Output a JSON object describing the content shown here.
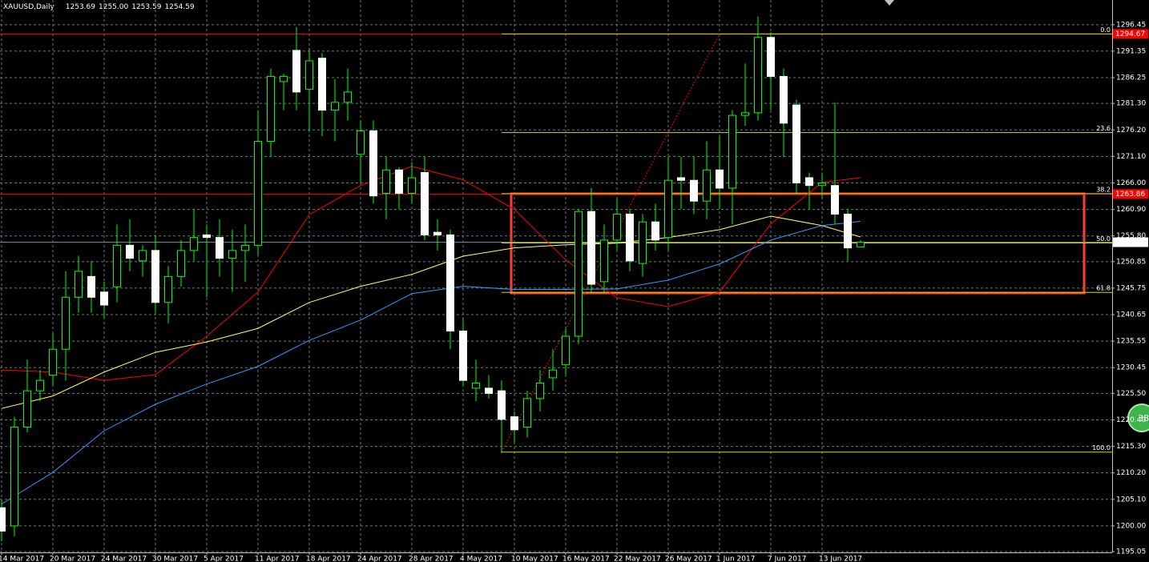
{
  "chart_data": {
    "type": "candlestick",
    "title": "XAUUSD,Daily",
    "header_values": [
      "1253.69",
      "1255.00",
      "1253.59",
      "1254.59"
    ],
    "categories": [
      "14 Mar 2017",
      null,
      null,
      null,
      "20 Mar 2017",
      null,
      null,
      null,
      "24 Mar 2017",
      null,
      null,
      null,
      "30 Mar 2017",
      null,
      null,
      null,
      "5 Apr 2017",
      null,
      null,
      null,
      "11 Apr 2017",
      null,
      null,
      null,
      "18 Apr 2017",
      null,
      null,
      null,
      "24 Apr 2017",
      null,
      null,
      null,
      "28 Apr 2017",
      null,
      null,
      null,
      "4 May 2017",
      null,
      null,
      null,
      "10 May 2017",
      null,
      null,
      null,
      "16 May 2017",
      null,
      null,
      null,
      "22 May 2017",
      null,
      null,
      null,
      "26 May 2017",
      null,
      null,
      null,
      "1 Jun 2017",
      null,
      null,
      null,
      "7 Jun 2017",
      null,
      null,
      null,
      "13 Jun 2017",
      null,
      null,
      null
    ],
    "open": [
      1203.5,
      1200,
      1219,
      1226,
      1229,
      1234,
      1244,
      1248,
      1245,
      1246,
      1254,
      1251,
      1253,
      1243,
      1248,
      1253,
      1256,
      1255.5,
      1251.5,
      1253,
      1254,
      1274,
      1285.5,
      1291.5,
      1284,
      1290,
      1280,
      1281.5,
      1271.5,
      1276,
      1264,
      1268.5,
      1264,
      1268,
      1256.5,
      1256,
      1237.5,
      1226.5,
      1226.5,
      1226,
      1221,
      1219,
      1224.5,
      1228.5,
      1231,
      1236.5,
      1260.5,
      1247,
      1255,
      1260,
      1250.5,
      1258.5,
      1255.5,
      1267,
      1266.5,
      1262.5,
      1268.5,
      1265,
      1279,
      1279.5,
      1294,
      1286.5,
      1281,
      1267,
      1265.5,
      1265.5,
      1260,
      1253.69
    ],
    "high": [
      1205,
      1221,
      1232,
      1230,
      1237,
      1249,
      1252,
      1251,
      1247,
      1258,
      1259,
      1254,
      1256,
      1250,
      1255,
      1261,
      1258,
      1259,
      1257,
      1258,
      1280,
      1288,
      1287,
      1296,
      1292,
      1291,
      1286,
      1288,
      1278,
      1278,
      1271,
      1269,
      1270,
      1271,
      1259,
      1257,
      1240,
      1232,
      1229,
      1228,
      1222,
      1226,
      1230,
      1234,
      1238,
      1261,
      1265,
      1258,
      1263,
      1261,
      1260,
      1262,
      1271,
      1271,
      1271,
      1274,
      1275,
      1280,
      1289,
      1298,
      1295,
      1288,
      1282,
      1268,
      1268,
      1281.5,
      1261,
      1255
    ],
    "low": [
      1197,
      1198,
      1218,
      1224,
      1227,
      1228,
      1241,
      1241,
      1240,
      1243,
      1249,
      1248,
      1241,
      1239,
      1246,
      1251,
      1244,
      1248,
      1245,
      1247,
      1252,
      1271,
      1280,
      1280,
      1276,
      1275,
      1274,
      1278,
      1266,
      1262,
      1259,
      1261,
      1262,
      1255,
      1253,
      1234,
      1227,
      1224,
      1224.5,
      1214,
      1216,
      1217,
      1222,
      1226,
      1229,
      1235,
      1245,
      1245,
      1253,
      1249,
      1248,
      1253,
      1253,
      1261,
      1260,
      1259,
      1261,
      1258,
      1277,
      1278,
      1280,
      1271,
      1264,
      1261,
      1263,
      1258,
      1251,
      1253.59
    ],
    "close": [
      1199,
      1219,
      1226,
      1228,
      1234,
      1244,
      1249,
      1244,
      1242.5,
      1254,
      1251.5,
      1253,
      1243,
      1248,
      1253,
      1255.5,
      1255.5,
      1251.5,
      1253,
      1254,
      1274,
      1286.5,
      1286.5,
      1283.5,
      1289.5,
      1280,
      1281.5,
      1283.5,
      1276,
      1263.5,
      1268.5,
      1264,
      1267,
      1256,
      1256,
      1237.5,
      1228,
      1227.5,
      1225.5,
      1220.5,
      1218.5,
      1224.5,
      1227.5,
      1230,
      1236.5,
      1260.5,
      1246.5,
      1255,
      1260,
      1251,
      1258.5,
      1255,
      1266.5,
      1266.5,
      1262.5,
      1268.5,
      1265,
      1279,
      1279.5,
      1294,
      1286.5,
      1277.5,
      1266,
      1265.5,
      1266,
      1260,
      1253.5,
      1254.59
    ],
    "up_color": "#00ff00",
    "up_fill": "#000000",
    "down_fill": "#ffffff",
    "ylim": [
      1194.9,
      1301.2
    ],
    "yticks": [
      1296.45,
      1291.35,
      1286.25,
      {
        "value": 1281.3,
        "label": "1281.30"
      },
      {
        "value": 1276.2,
        "label": "1276.20"
      },
      {
        "value": 1271.1,
        "label": "1271.10"
      },
      {
        "value": 1266,
        "label": "1266.00"
      },
      {
        "value": 1260.9,
        "label": "1260.90"
      },
      {
        "value": 1255.8,
        "label": "1255.80"
      },
      1250.85,
      1245.75,
      1240.65,
      1235.55,
      1230.45,
      {
        "value": 1225.5,
        "label": "1225.50"
      },
      {
        "value": 1220.4,
        "label": "1220.40"
      },
      {
        "value": 1215.3,
        "label": "1215.30"
      },
      {
        "value": 1210.2,
        "label": "1210.20"
      },
      {
        "value": 1205.1,
        "label": "1205.10"
      },
      {
        "value": 1200,
        "label": "1200.00"
      },
      1195.05
    ],
    "grid": true,
    "grid_color": "#6b7878",
    "indicators": [
      {
        "color": "#ff0000",
        "x": [
          0,
          4,
          8,
          12,
          16,
          20,
          24,
          28,
          32,
          36,
          40,
          44,
          48,
          52,
          56,
          60,
          64,
          67
        ],
        "values": [
          1230.0,
          1229.6,
          1228.0,
          1229.1,
          1236.5,
          1245.0,
          1259.9,
          1265.5,
          1269.2,
          1266.6,
          1260.9,
          1251.2,
          1243.9,
          1242.2,
          1245.0,
          1258.1,
          1266.1,
          1267.0
        ]
      },
      {
        "color": "#ffff66",
        "x": [
          0,
          4,
          8,
          12,
          16,
          20,
          24,
          28,
          32,
          36,
          40,
          44,
          48,
          52,
          56,
          60,
          64,
          67
        ],
        "values": [
          1222.6,
          1225.0,
          1229.6,
          1233.4,
          1235.4,
          1238.0,
          1243.0,
          1246.1,
          1248.4,
          1251.9,
          1253.5,
          1254.1,
          1254.4,
          1255.5,
          1257.0,
          1259.6,
          1257.8,
          1255.6
        ]
      },
      {
        "color": "#3399ff",
        "x": [
          0,
          4,
          8,
          12,
          16,
          20,
          24,
          28,
          32,
          36,
          40,
          44,
          48,
          52,
          56,
          60,
          64,
          67
        ],
        "values": [
          1204.2,
          1210.3,
          1218.3,
          1223.4,
          1227.3,
          1230.7,
          1235.7,
          1239.6,
          1244.7,
          1246.1,
          1245.5,
          1245.5,
          1245.6,
          1247.3,
          1250.4,
          1255.0,
          1257.8,
          1258.6
        ]
      }
    ],
    "hlines": [
      {
        "value": 1294.67,
        "color": "#ff0000"
      },
      {
        "value": 1263.86,
        "color": "#ff0000"
      }
    ],
    "last_price_color": "#7088a0",
    "fibonacci": {
      "color": "#d8d800",
      "line_color": "#ff0000",
      "high": 1294.67,
      "low": 1214.2,
      "x": [
        39,
        56
      ],
      "levels": [
        {
          "value": 0,
          "label": "0.0"
        },
        23.6,
        38.2,
        {
          "value": 50,
          "label": "50.0"
        },
        61.8,
        {
          "value": 100,
          "label": "100.0"
        }
      ]
    }
  },
  "badge": "38"
}
